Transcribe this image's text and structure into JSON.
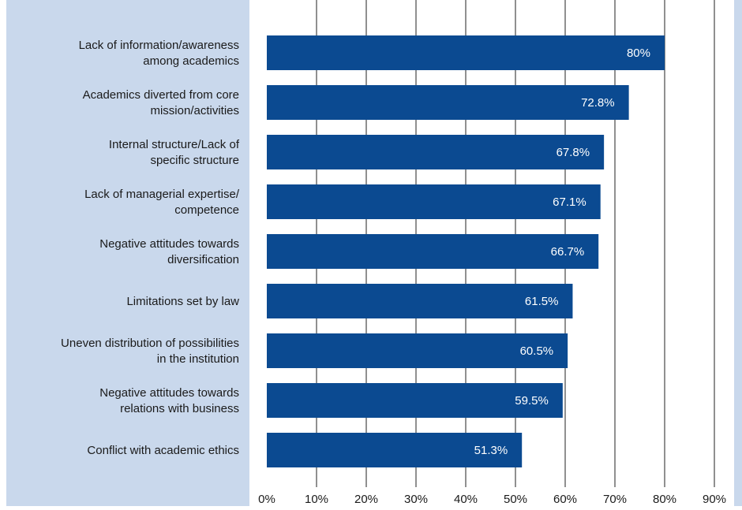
{
  "colors": {
    "label_panel": "#c9d8ec",
    "right_strip": "#c9d8ec",
    "bar": "#0b4a91",
    "grid": "#222222",
    "value_text": "#ffffff"
  },
  "chart_data": {
    "type": "bar",
    "orientation": "horizontal",
    "categories": [
      [
        "Lack of information/awareness",
        "among academics"
      ],
      [
        "Academics diverted from core",
        "mission/activities"
      ],
      [
        "Internal structure/Lack of",
        "specific structure"
      ],
      [
        "Lack of managerial expertise/",
        "competence"
      ],
      [
        "Negative attitudes towards",
        "diversification"
      ],
      [
        "Limitations set by law"
      ],
      [
        "Uneven distribution of possibilities",
        "in the institution"
      ],
      [
        "Negative attitudes towards",
        "relations with business"
      ],
      [
        "Conflict with academic ethics"
      ]
    ],
    "values": [
      80,
      72.8,
      67.8,
      67.1,
      66.7,
      61.5,
      60.5,
      59.5,
      51.3
    ],
    "value_labels": [
      "80%",
      "72.8%",
      "67.8%",
      "67.1%",
      "66.7%",
      "61.5%",
      "60.5%",
      "59.5%",
      "51.3%"
    ],
    "xlim": [
      0,
      90
    ],
    "xticks": [
      0,
      10,
      20,
      30,
      40,
      50,
      60,
      70,
      80,
      90
    ],
    "xtick_labels": [
      "0%",
      "10%",
      "20%",
      "30%",
      "40%",
      "50%",
      "60%",
      "70%",
      "80%",
      "90%"
    ],
    "grid": "vertical",
    "title": "",
    "xlabel": "",
    "ylabel": ""
  }
}
